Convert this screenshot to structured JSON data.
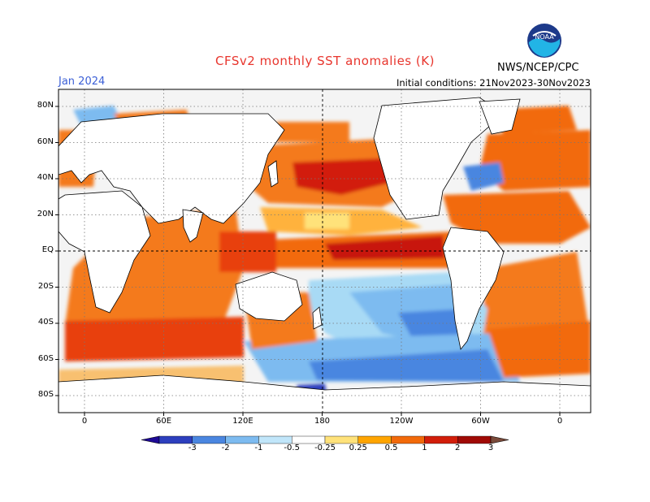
{
  "header": {
    "title": "CFSv2 monthly SST anomalies (K)",
    "month": "Jan 2024",
    "initial_conditions": "Initial conditions: 21Nov2023-30Nov2023",
    "org": "NWS/NCEP/CPC",
    "logo_text": "NOAA"
  },
  "map": {
    "lat_labels": [
      "80N",
      "60N",
      "40N",
      "20N",
      "EQ",
      "20S",
      "40S",
      "60S",
      "80S"
    ],
    "lon_labels": [
      "0",
      "60E",
      "120E",
      "180",
      "120W",
      "60W",
      "0"
    ]
  },
  "colorbar": {
    "labels": [
      "-3",
      "-2",
      "-1",
      "-0.5",
      "-0.25",
      "0.25",
      "0.5",
      "1",
      "2",
      "3"
    ],
    "colors": [
      "#1e0a96",
      "#2d3fbe",
      "#4a86e0",
      "#7dbbf0",
      "#c1e6fa",
      "#ffffff",
      "#ffe27a",
      "#ffa500",
      "#f26a0a",
      "#d21e0a",
      "#a00a05",
      "#7a4a3a"
    ]
  },
  "colors": {
    "title": "#e8362e",
    "month": "#3b5fd6",
    "ocean_neutral": "#f5f5f5",
    "land": "#ffffff"
  }
}
